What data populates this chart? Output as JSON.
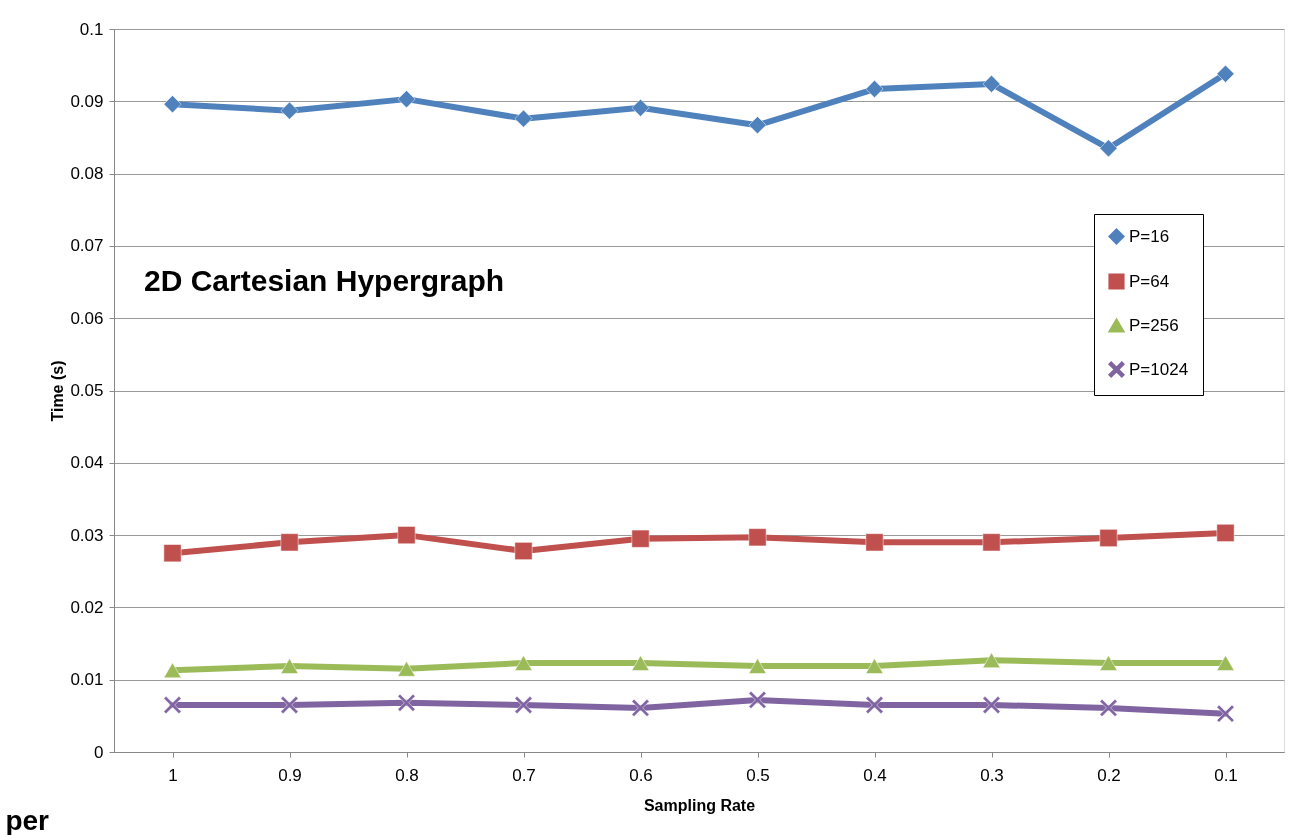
{
  "chart_data": {
    "type": "line",
    "title": "2D Cartesian Hypergraph",
    "xlabel": "Sampling Rate",
    "ylabel": "Time (s)",
    "categories": [
      "1",
      "0.9",
      "0.8",
      "0.7",
      "0.6",
      "0.5",
      "0.4",
      "0.3",
      "0.2",
      "0.1"
    ],
    "series": [
      {
        "name": "P=16",
        "color": "#4f81bd",
        "marker": "diamond",
        "values": [
          0.0896,
          0.0887,
          0.0903,
          0.0876,
          0.0891,
          0.0867,
          0.0917,
          0.0924,
          0.0835,
          0.0938
        ]
      },
      {
        "name": "P=64",
        "color": "#c0504d",
        "marker": "square",
        "values": [
          0.0275,
          0.029,
          0.03,
          0.0278,
          0.0295,
          0.0297,
          0.029,
          0.029,
          0.0296,
          0.0303
        ]
      },
      {
        "name": "P=256",
        "color": "#9bbb59",
        "marker": "triangle",
        "values": [
          0.0113,
          0.0119,
          0.0115,
          0.0123,
          0.0123,
          0.0119,
          0.0119,
          0.0127,
          0.0123,
          0.0123
        ]
      },
      {
        "name": "P=1024",
        "color": "#8064a2",
        "marker": "cross",
        "values": [
          0.0065,
          0.0065,
          0.0068,
          0.0065,
          0.0061,
          0.0072,
          0.0065,
          0.0065,
          0.0061,
          0.0053
        ]
      }
    ],
    "ylim": [
      0,
      0.1
    ],
    "yticks": [
      0,
      0.01,
      0.02,
      0.03,
      0.04,
      0.05,
      0.06,
      0.07,
      0.08,
      0.09,
      0.1
    ],
    "grid": "y",
    "legend": "right",
    "line_style": "solid",
    "annotations": [
      "per"
    ]
  }
}
